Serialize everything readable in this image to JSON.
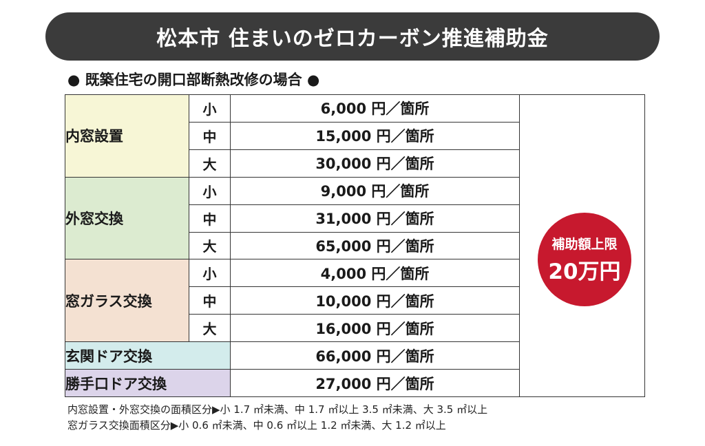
{
  "title": "松本市 住まいのゼロカーボン推進補助金",
  "section_heading": "● 既築住宅の開口部断熱改修の場合 ●",
  "colors": {
    "title_bg": "#3b3b3b",
    "inner_window": "#f7f6d6",
    "outer_window": "#dcebd0",
    "glass": "#f4e1d2",
    "entrance_door": "#d3ecec",
    "back_door": "#dcd4ea",
    "badge": "#c7192e"
  },
  "table": {
    "groups": [
      {
        "category": "内窓設置",
        "rows": [
          {
            "size": "小",
            "price": "6,000 円／箇所"
          },
          {
            "size": "中",
            "price": "15,000 円／箇所"
          },
          {
            "size": "大",
            "price": "30,000 円／箇所"
          }
        ]
      },
      {
        "category": "外窓交換",
        "rows": [
          {
            "size": "小",
            "price": "9,000 円／箇所"
          },
          {
            "size": "中",
            "price": "31,000 円／箇所"
          },
          {
            "size": "大",
            "price": "65,000 円／箇所"
          }
        ]
      },
      {
        "category": "窓ガラス交換",
        "rows": [
          {
            "size": "小",
            "price": "4,000 円／箇所"
          },
          {
            "size": "中",
            "price": "10,000 円／箇所"
          },
          {
            "size": "大",
            "price": "16,000 円／箇所"
          }
        ]
      }
    ],
    "singles": [
      {
        "category": "玄関ドア交換",
        "price": "66,000 円／箇所"
      },
      {
        "category": "勝手口ドア交換",
        "price": "27,000 円／箇所"
      }
    ]
  },
  "badge": {
    "label": "補助額上限",
    "value": "20万円"
  },
  "notes": [
    "内窓設置・外窓交換の面積区分▶小 1.7 ㎡未満、中 1.7 ㎡以上 3.5 ㎡未満、大 3.5 ㎡以上",
    "窓ガラス交換面積区分▶小 0.6 ㎡未満、中 0.6 ㎡以上 1.2 ㎡未満、大 1.2 ㎡以上"
  ]
}
